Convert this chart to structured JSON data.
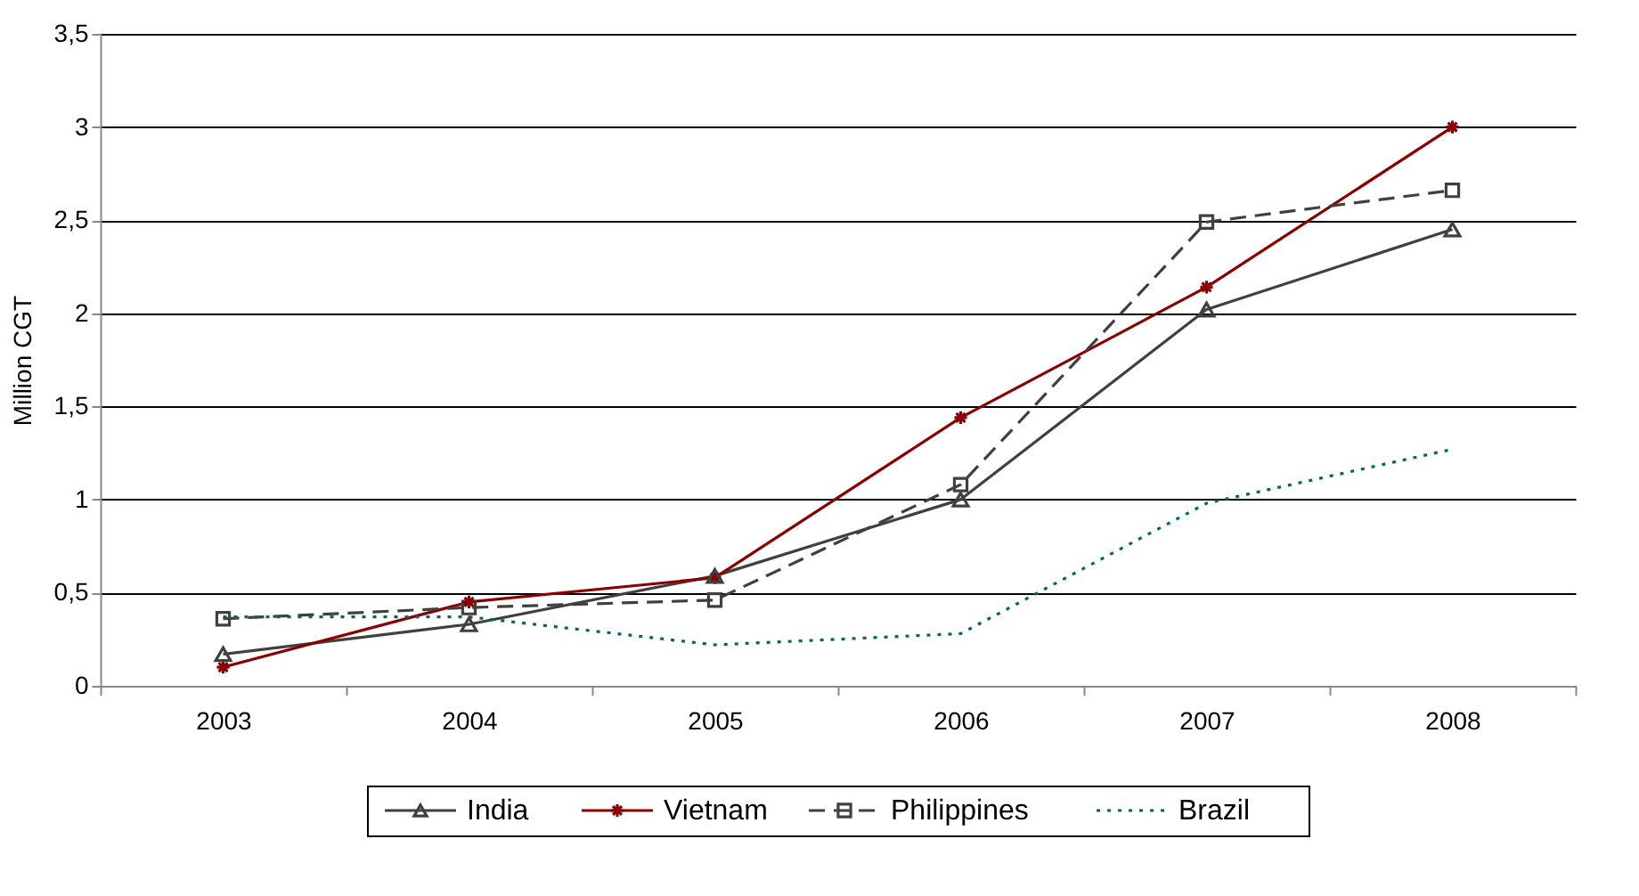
{
  "chart_data": {
    "type": "line",
    "ylabel": "Million CGT",
    "categories": [
      "2003",
      "2004",
      "2005",
      "2006",
      "2007",
      "2008"
    ],
    "series": [
      {
        "name": "India",
        "color": "#404040",
        "marker": "triangle",
        "line_style": "solid",
        "values": [
          0.17,
          0.33,
          0.59,
          1.0,
          2.02,
          2.45
        ]
      },
      {
        "name": "Vietnam",
        "color": "#8b0000",
        "marker": "cross",
        "line_style": "solid",
        "values": [
          0.1,
          0.45,
          0.58,
          1.44,
          2.14,
          3.0
        ]
      },
      {
        "name": "Philippines",
        "color": "#404040",
        "marker": "square",
        "line_style": "dashed",
        "values": [
          0.36,
          0.42,
          0.46,
          1.08,
          2.49,
          2.66
        ]
      },
      {
        "name": "Brazil",
        "color": "#006666",
        "marker": "none",
        "line_style": "dotted",
        "values": [
          0.37,
          0.37,
          0.22,
          0.28,
          0.98,
          1.27
        ]
      }
    ],
    "ylim": [
      0,
      3.5
    ],
    "yticks": [
      {
        "value": 0,
        "label": "0"
      },
      {
        "value": 0.5,
        "label": "0,5"
      },
      {
        "value": 1,
        "label": "1"
      },
      {
        "value": 1.5,
        "label": "1,5"
      },
      {
        "value": 2,
        "label": "2"
      },
      {
        "value": 2.5,
        "label": "2,5"
      },
      {
        "value": 3,
        "label": "3"
      },
      {
        "value": 3.5,
        "label": "3,5"
      }
    ],
    "grid": "y",
    "legend": "bottom"
  }
}
